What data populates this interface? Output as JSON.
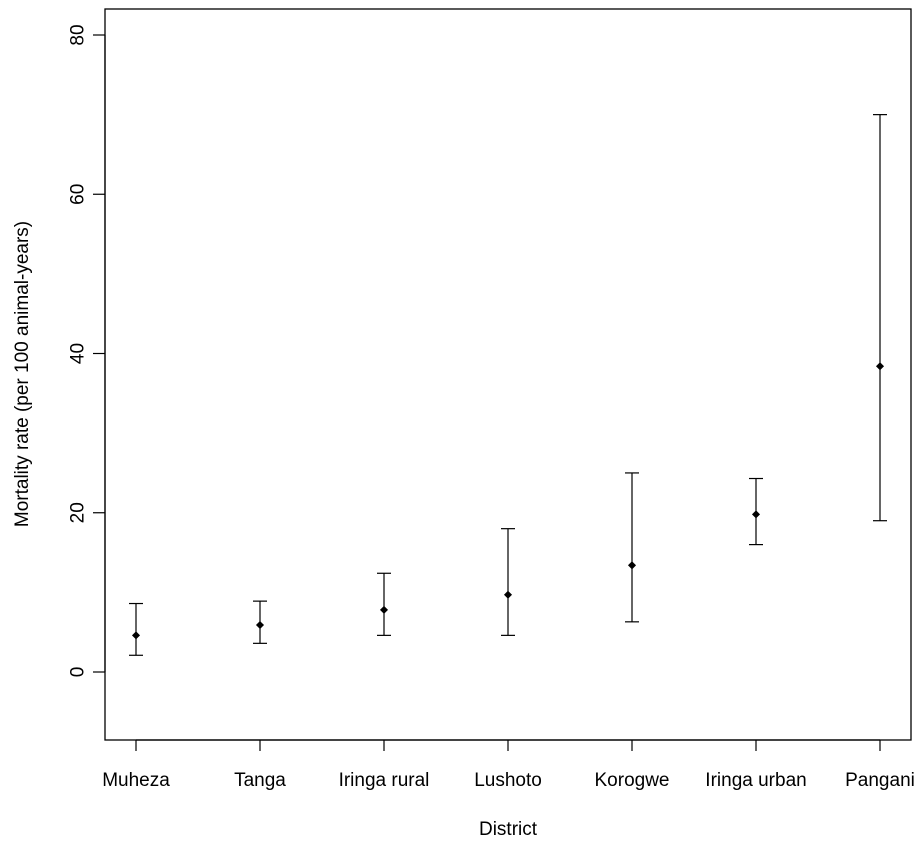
{
  "chart_data": {
    "type": "scatter",
    "subtype": "point-with-error-bars",
    "title": "",
    "xlabel": "District",
    "ylabel": "Mortality rate (per 100 animal-years)",
    "categories": [
      "Muheza",
      "Tanga",
      "Iringa rural",
      "Lushoto",
      "Korogwe",
      "Iringa urban",
      "Pangani"
    ],
    "values": [
      4.6,
      5.9,
      7.8,
      9.7,
      13.4,
      19.8,
      38.4
    ],
    "lower": [
      2.1,
      3.6,
      4.6,
      4.6,
      6.3,
      16.0,
      19.0
    ],
    "upper": [
      8.6,
      8.9,
      12.4,
      18.0,
      25.0,
      24.3,
      70.0
    ],
    "ylim": [
      -8.5,
      83.5
    ],
    "yticks": [
      0,
      20,
      40,
      60,
      80
    ],
    "grid": false,
    "legend": "none",
    "marker_color": "#000000"
  }
}
